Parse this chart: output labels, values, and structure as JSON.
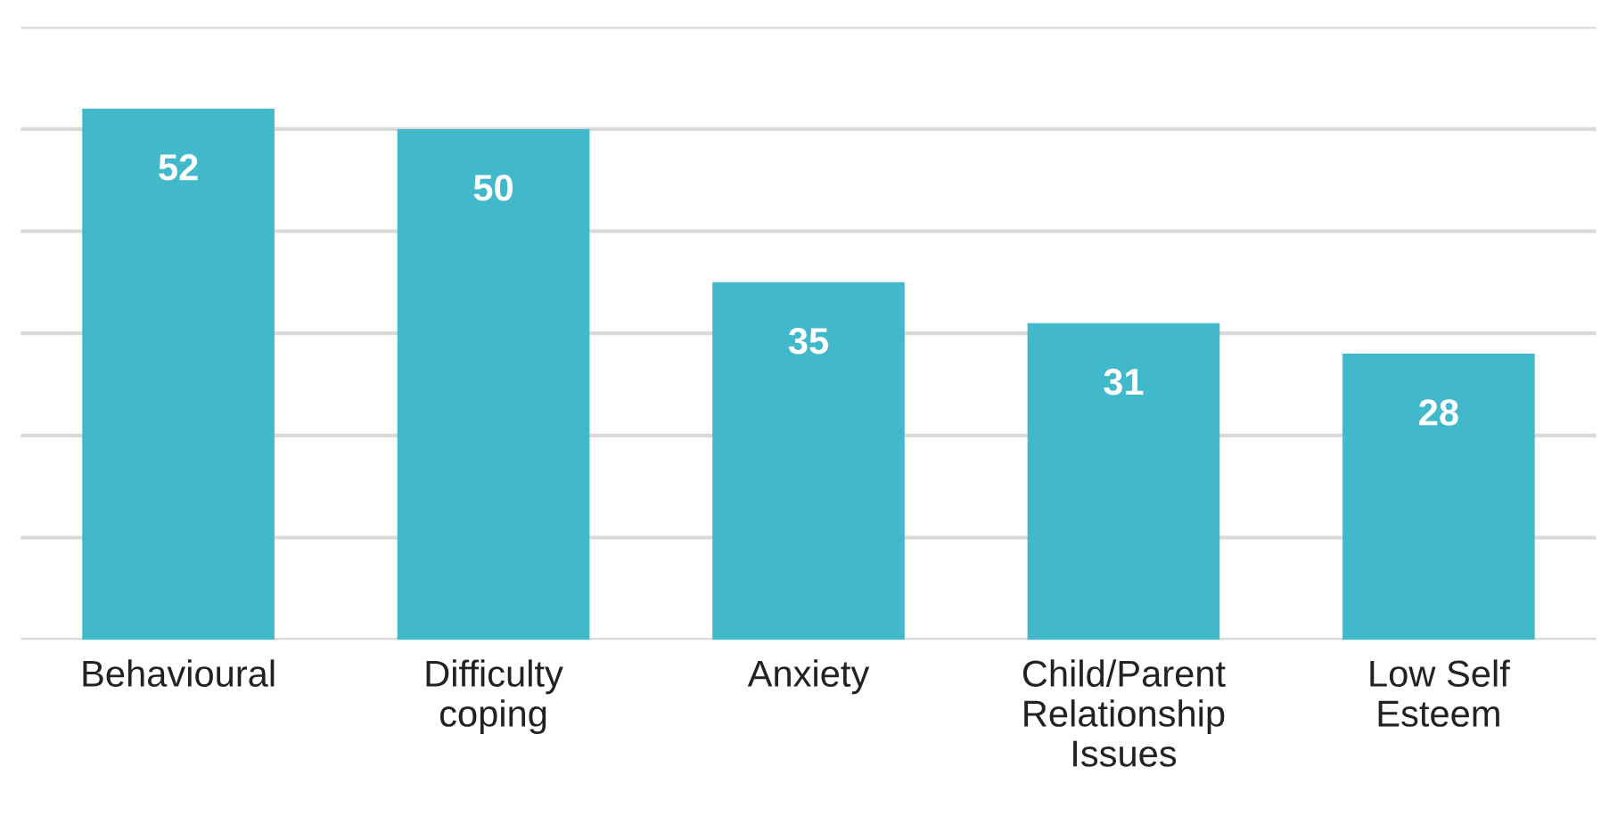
{
  "chart_data": {
    "type": "bar",
    "categories": [
      "Behavioural",
      "Difficulty\ncoping",
      "Anxiety",
      "Child/Parent\nRelationship\nIssues",
      "Low Self\nEsteem"
    ],
    "values": [
      52,
      50,
      35,
      31,
      28
    ],
    "color": "#42b9cb",
    "data_labels": true,
    "ylim": [
      0,
      60
    ],
    "yticks": [
      {
        "value": 0,
        "label": null
      },
      {
        "value": 10,
        "label": null
      },
      {
        "value": 20,
        "label": null
      },
      {
        "value": 30,
        "label": null
      },
      {
        "value": 40,
        "label": null
      },
      {
        "value": 50,
        "label": null
      },
      {
        "value": 60,
        "label": null
      }
    ],
    "grid": "y",
    "tick_labels": "x"
  }
}
